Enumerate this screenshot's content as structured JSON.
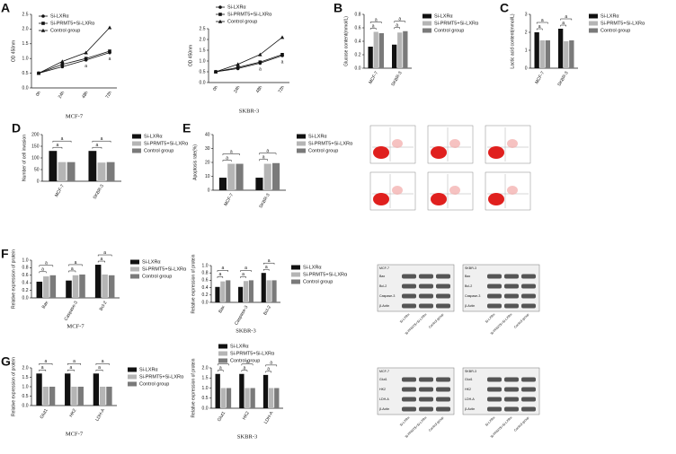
{
  "chart_data": [
    {
      "panel": "A",
      "type": "line",
      "ylabel": "OD 450nm",
      "xlabel": "MCF-7",
      "categories": [
        "0h",
        "24h",
        "48h",
        "72h"
      ],
      "series": [
        {
          "name": "Si-LXRα",
          "color": "#111111",
          "marker": "circle",
          "values": [
            0.5,
            0.72,
            0.95,
            1.2
          ]
        },
        {
          "name": "Si-PRMT5+Si-LXRα",
          "color": "#111111",
          "marker": "square",
          "values": [
            0.5,
            0.8,
            1.0,
            1.25
          ]
        },
        {
          "name": "Control group",
          "color": "#111111",
          "marker": "triangle",
          "values": [
            0.5,
            0.9,
            1.2,
            2.05
          ]
        }
      ],
      "ylim": [
        0,
        2.5
      ],
      "yticks": [
        {
          "value": 0,
          "label": "0.0"
        },
        {
          "value": 0.5,
          "label": "0.5"
        },
        {
          "value": 1,
          "label": "1.0"
        },
        {
          "value": 1.5,
          "label": "1.5"
        },
        {
          "value": 2,
          "label": "2.0"
        },
        {
          "value": 2.5,
          "label": "2.5"
        }
      ],
      "legend": "upper left",
      "significance_label": "a"
    },
    {
      "type": "line",
      "ylabel": "OD 450nm",
      "xlabel": "SKBR-3",
      "categories": [
        "0h",
        "24h",
        "48h",
        "72h"
      ],
      "series": [
        {
          "name": "Si-LXRα",
          "color": "#111111",
          "marker": "circle",
          "values": [
            0.5,
            0.65,
            0.9,
            1.25
          ]
        },
        {
          "name": "Si-PRMT5+Si-LXRα",
          "color": "#111111",
          "marker": "square",
          "values": [
            0.5,
            0.7,
            0.95,
            1.3
          ]
        },
        {
          "name": "Control group",
          "color": "#111111",
          "marker": "triangle",
          "values": [
            0.5,
            0.85,
            1.3,
            2.1
          ]
        }
      ],
      "ylim": [
        0,
        2.5
      ],
      "yticks": [
        {
          "value": 0,
          "label": "0.0"
        },
        {
          "value": 0.5,
          "label": "0.5"
        },
        {
          "value": 1,
          "label": "1.0"
        },
        {
          "value": 1.5,
          "label": "1.5"
        },
        {
          "value": 2,
          "label": "2.0"
        },
        {
          "value": 2.5,
          "label": "2.5"
        }
      ],
      "legend": "above",
      "significance_label": "a"
    },
    {
      "panel": "B",
      "type": "bar",
      "ylabel": "Glucose content(mmol/L)",
      "categories": [
        "MCF-7",
        "SKBR-3"
      ],
      "series": [
        {
          "name": "Si-LXRα",
          "color": "#111111",
          "values": [
            0.32,
            0.35
          ]
        },
        {
          "name": "Si-PRMT5+Si-LXRα",
          "color": "#b5b5b5",
          "values": [
            0.54,
            0.53
          ]
        },
        {
          "name": "Control group",
          "color": "#7a7a7a",
          "values": [
            0.52,
            0.55
          ]
        }
      ],
      "ylim": [
        0,
        0.8
      ],
      "yticks": [
        {
          "value": 0,
          "label": "0.0"
        },
        {
          "value": 0.2,
          "label": "0.2"
        },
        {
          "value": 0.4,
          "label": "0.4"
        },
        {
          "value": 0.6,
          "label": "0.6"
        },
        {
          "value": 0.8,
          "label": "0.8"
        }
      ],
      "legend": "right",
      "significance_label": "a"
    },
    {
      "panel": "C",
      "type": "bar",
      "ylabel": "Lactic acid content(mmol/L)",
      "categories": [
        "MCF-7",
        "SKBR-3"
      ],
      "series": [
        {
          "name": "Si-LXRα",
          "color": "#111111",
          "values": [
            2.0,
            2.2
          ]
        },
        {
          "name": "Si-PRMT5+Si-LXRα",
          "color": "#b5b5b5",
          "values": [
            1.55,
            1.5
          ]
        },
        {
          "name": "Control group",
          "color": "#7a7a7a",
          "values": [
            1.55,
            1.55
          ]
        }
      ],
      "ylim": [
        0,
        3
      ],
      "yticks": [
        0,
        1,
        2,
        3
      ],
      "legend": "right",
      "significance_label": "a"
    },
    {
      "panel": "D",
      "type": "bar",
      "ylabel": "Number of cell invasion",
      "categories": [
        "MCF-7",
        "SKBR-3"
      ],
      "series": [
        {
          "name": "Si-LXRα",
          "color": "#111111",
          "values": [
            130,
            130
          ]
        },
        {
          "name": "Si-PRMT5+Si-LXRα",
          "color": "#b5b5b5",
          "values": [
            82,
            80
          ]
        },
        {
          "name": "Control group",
          "color": "#7a7a7a",
          "values": [
            82,
            82
          ]
        }
      ],
      "ylim": [
        0,
        200
      ],
      "yticks": [
        0,
        50,
        100,
        150,
        200
      ],
      "legend": "right",
      "significance_label": "a"
    },
    {
      "panel": "E",
      "type": "bar",
      "ylabel": "Apoptosis rate(%)",
      "categories": [
        "MCF-7",
        "SKBR-3"
      ],
      "series": [
        {
          "name": "Si-LXRα",
          "color": "#111111",
          "values": [
            9,
            9
          ]
        },
        {
          "name": "Si-PRMT5+Si-LXRα",
          "color": "#b5b5b5",
          "values": [
            19,
            19
          ]
        },
        {
          "name": "Control group",
          "color": "#7a7a7a",
          "values": [
            19,
            19.5
          ]
        }
      ],
      "ylim": [
        0,
        40
      ],
      "yticks": [
        0,
        10,
        20,
        30,
        40
      ],
      "legend": "right",
      "significance_label": "a"
    },
    {
      "panel": "F",
      "type": "bar",
      "ylabel": "Relative expression of protein",
      "xlabel": "MCF-7",
      "categories": [
        "Bax",
        "Caspase-3",
        "Bcl-2"
      ],
      "series": [
        {
          "name": "Si-LXRα",
          "color": "#111111",
          "values": [
            0.43,
            0.46,
            0.88
          ]
        },
        {
          "name": "Si-PRMT5+Si-LXRα",
          "color": "#b5b5b5",
          "values": [
            0.57,
            0.6,
            0.62
          ]
        },
        {
          "name": "Control group",
          "color": "#7a7a7a",
          "values": [
            0.6,
            0.62,
            0.6
          ]
        }
      ],
      "ylim": [
        0,
        1
      ],
      "yticks": [
        {
          "value": 0,
          "label": "0.0"
        },
        {
          "value": 0.2,
          "label": "0.2"
        },
        {
          "value": 0.4,
          "label": "0.4"
        },
        {
          "value": 0.6,
          "label": "0.6"
        },
        {
          "value": 0.8,
          "label": "0.8"
        },
        {
          "value": 1,
          "label": "1.0"
        }
      ],
      "legend": "right",
      "significance_label": "a"
    },
    {
      "type": "bar",
      "ylabel": "Relative expression of protein",
      "xlabel": "SKBR-3",
      "categories": [
        "Bax",
        "Caspase-3",
        "Bcl-2"
      ],
      "series": [
        {
          "name": "Si-LXRα",
          "color": "#111111",
          "values": [
            0.42,
            0.42,
            0.8
          ]
        },
        {
          "name": "Si-PRMT5+Si-LXRα",
          "color": "#b5b5b5",
          "values": [
            0.57,
            0.58,
            0.6
          ]
        },
        {
          "name": "Control group",
          "color": "#7a7a7a",
          "values": [
            0.6,
            0.6,
            0.6
          ]
        }
      ],
      "ylim": [
        0,
        1
      ],
      "yticks": [
        {
          "value": 0,
          "label": "0.0"
        },
        {
          "value": 0.2,
          "label": "0.2"
        },
        {
          "value": 0.4,
          "label": "0.4"
        },
        {
          "value": 0.6,
          "label": "0.6"
        },
        {
          "value": 0.8,
          "label": "0.8"
        },
        {
          "value": 1,
          "label": "1.0"
        }
      ],
      "legend": "right",
      "significance_label": "a"
    },
    {
      "panel": "G",
      "type": "bar",
      "ylabel": "Relative expression of protein",
      "xlabel": "MCF-7",
      "categories": [
        "Glut1",
        "HK2",
        "LDH-A"
      ],
      "series": [
        {
          "name": "Si-LXRα",
          "color": "#111111",
          "values": [
            1.7,
            1.7,
            1.7
          ]
        },
        {
          "name": "Si-PRMT5+Si-LXRα",
          "color": "#b5b5b5",
          "values": [
            1.0,
            1.0,
            1.0
          ]
        },
        {
          "name": "Control group",
          "color": "#7a7a7a",
          "values": [
            1.0,
            1.0,
            1.0
          ]
        }
      ],
      "ylim": [
        0,
        2
      ],
      "yticks": [
        {
          "value": 0,
          "label": "0.0"
        },
        {
          "value": 0.5,
          "label": "0.5"
        },
        {
          "value": 1,
          "label": "1.0"
        },
        {
          "value": 1.5,
          "label": "1.5"
        },
        {
          "value": 2,
          "label": "2.0"
        }
      ],
      "legend": "right",
      "significance_label": "a"
    },
    {
      "type": "bar",
      "ylabel": "Relative expression of protein",
      "xlabel": "SKBR-3",
      "categories": [
        "Glut1",
        "HK2",
        "LDH-A"
      ],
      "series": [
        {
          "name": "Si-LXRα",
          "color": "#111111",
          "values": [
            1.7,
            1.7,
            1.65
          ]
        },
        {
          "name": "Si-PRMT5+Si-LXRα",
          "color": "#b5b5b5",
          "values": [
            1.0,
            1.0,
            1.0
          ]
        },
        {
          "name": "Control group",
          "color": "#7a7a7a",
          "values": [
            1.0,
            1.0,
            1.0
          ]
        }
      ],
      "ylim": [
        0,
        2
      ],
      "yticks": [
        {
          "value": 0,
          "label": "0.0"
        },
        {
          "value": 0.5,
          "label": "0.5"
        },
        {
          "value": 1,
          "label": "1.0"
        },
        {
          "value": 1.5,
          "label": "1.5"
        },
        {
          "value": 2,
          "label": "2.0"
        }
      ],
      "legend": "above",
      "significance_label": "a"
    }
  ],
  "blots": [
    {
      "cell": "MCF-7",
      "proteins": [
        "Bax",
        "Bcl-2",
        "Caspase-3",
        "β-Actin"
      ],
      "lanes": [
        "Si-LXRα",
        "Si-PRMT5+Si-LXRα",
        "Control group"
      ]
    },
    {
      "cell": "SKBR-3",
      "proteins": [
        "Bax",
        "Bcl-2",
        "Caspase-3",
        "β-Actin"
      ],
      "lanes": [
        "Si-LXRα",
        "Si-PRMT5+Si-LXRα",
        "Control group"
      ]
    },
    {
      "cell": "MCF-7",
      "proteins": [
        "Glut1",
        "HK2",
        "LDH-A",
        "β-Actin"
      ],
      "lanes": [
        "Si-LXRα",
        "Si-PRMT5+Si-LXRα",
        "Control group"
      ]
    },
    {
      "cell": "SKBR-3",
      "proteins": [
        "Glut1",
        "HK2",
        "LDH-A",
        "β-Actin"
      ],
      "lanes": [
        "Si-LXRα",
        "Si-PRMT5+Si-LXRα",
        "Control group"
      ]
    }
  ]
}
